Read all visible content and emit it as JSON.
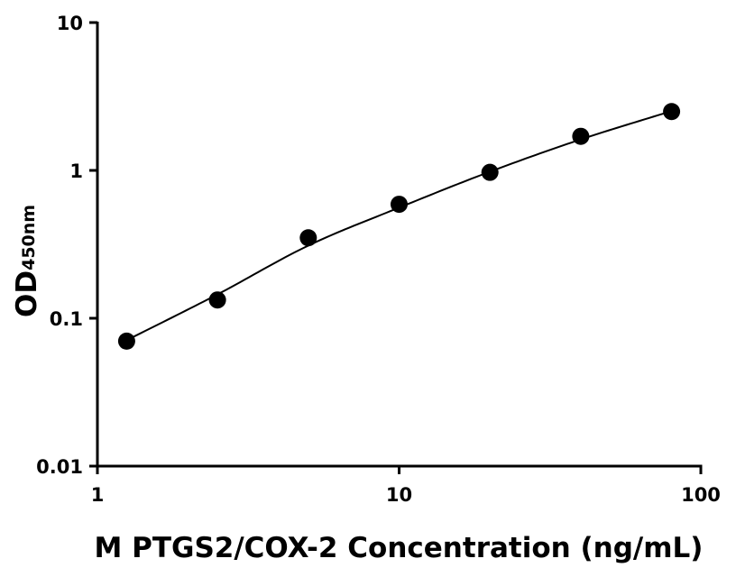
{
  "chart_data": {
    "type": "scatter",
    "title": "",
    "xlabel": "M PTGS2/COX-2 Concentration (ng/mL)",
    "ylabel": "OD",
    "ylabel_subscript": "450nm",
    "xscale": "log",
    "yscale": "log",
    "xlim": [
      1,
      100
    ],
    "ylim": [
      0.01,
      10
    ],
    "x_ticks": [
      {
        "value": 1,
        "label": "1"
      },
      {
        "value": 10,
        "label": "10"
      },
      {
        "value": 100,
        "label": "100"
      }
    ],
    "y_ticks": [
      {
        "value": 0.01,
        "label": "0.01"
      },
      {
        "value": 0.1,
        "label": "0.1"
      },
      {
        "value": 1,
        "label": "1"
      },
      {
        "value": 10,
        "label": "10"
      }
    ],
    "grid": false,
    "legend": "none",
    "series": [
      {
        "x": [
          1.25,
          2.5,
          5,
          10,
          20,
          40,
          80
        ],
        "y": [
          0.07,
          0.133,
          0.35,
          0.59,
          0.97,
          1.7,
          2.5
        ],
        "marker": "circle",
        "color": "#000000"
      }
    ],
    "fit_curve": {
      "type": "smooth",
      "x": [
        1.25,
        2.5,
        5,
        10,
        20,
        40,
        80
      ],
      "y": [
        0.071,
        0.145,
        0.31,
        0.56,
        0.98,
        1.62,
        2.52
      ],
      "color": "#000000"
    }
  }
}
